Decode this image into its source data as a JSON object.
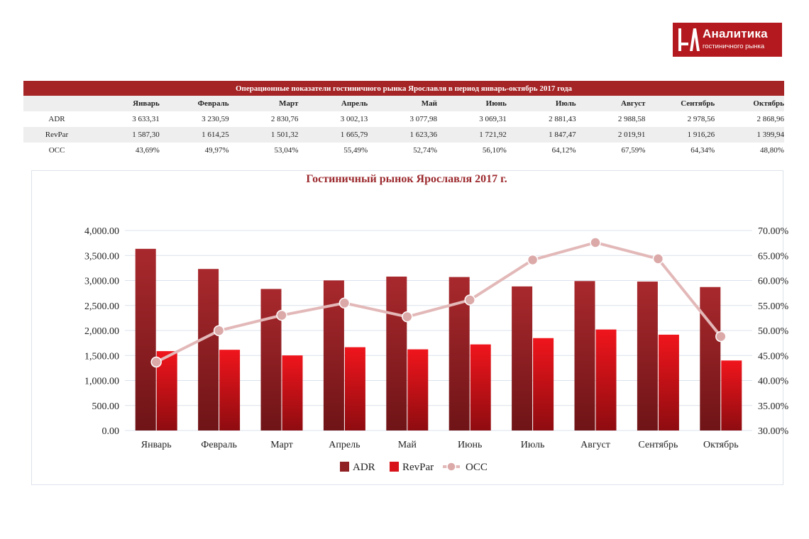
{
  "logo": {
    "title": "Аналитика",
    "subtitle": "гостиничного рынка",
    "bg_color": "#b3191e"
  },
  "table": {
    "title": "Операционные показатели гостиничного рынка Ярославля в период январь-октябрь 2017 года",
    "header": [
      "Январь",
      "Февраль",
      "Март",
      "Апрель",
      "Май",
      "Июнь",
      "Июль",
      "Август",
      "Сентябрь",
      "Октябрь"
    ],
    "rows": [
      {
        "label": "ADR",
        "values": [
          "3 633,31",
          "3 230,59",
          "2 830,76",
          "3 002,13",
          "3 077,98",
          "3 069,31",
          "2 881,43",
          "2 988,58",
          "2 978,56",
          "2 868,96"
        ]
      },
      {
        "label": "RevPar",
        "values": [
          "1 587,30",
          "1 614,25",
          "1 501,32",
          "1 665,79",
          "1 623,36",
          "1 721,92",
          "1 847,47",
          "2 019,91",
          "1 916,26",
          "1 399,94"
        ]
      },
      {
        "label": "OCC",
        "values": [
          "43,69%",
          "49,97%",
          "53,04%",
          "55,49%",
          "52,74%",
          "56,10%",
          "64,12%",
          "67,59%",
          "64,34%",
          "48,80%"
        ]
      }
    ]
  },
  "chart_data": {
    "type": "bar",
    "title": "Гостиничный рынок Ярославля 2017 г.",
    "categories": [
      "Январь",
      "Февраль",
      "Март",
      "Апрель",
      "Май",
      "Июнь",
      "Июль",
      "Август",
      "Сентябрь",
      "Октябрь"
    ],
    "series": [
      {
        "name": "ADR",
        "type": "bar",
        "axis": "left",
        "color": "#a4282c",
        "values": [
          3633.31,
          3230.59,
          2830.76,
          3002.13,
          3077.98,
          3069.31,
          2881.43,
          2988.58,
          2978.56,
          2868.96
        ]
      },
      {
        "name": "RevPar",
        "type": "bar",
        "axis": "left",
        "color": "#e0141b",
        "values": [
          1587.3,
          1614.25,
          1501.32,
          1665.79,
          1623.36,
          1721.92,
          1847.47,
          2019.91,
          1916.26,
          1399.94
        ]
      },
      {
        "name": "OCC",
        "type": "line",
        "axis": "right",
        "color": "#e3b8b8",
        "values": [
          43.69,
          49.97,
          53.04,
          55.49,
          52.74,
          56.1,
          64.12,
          67.59,
          64.34,
          48.8
        ]
      }
    ],
    "y_left": {
      "min": 0,
      "max": 4000,
      "step": 500,
      "ticks": [
        "0.00",
        "500.00",
        "1,000.00",
        "1,500.00",
        "2,000.00",
        "2,500.00",
        "3,000.00",
        "3,500.00",
        "4,000.00"
      ]
    },
    "y_right": {
      "min": 30,
      "max": 70,
      "step": 5,
      "ticks": [
        "30.00%",
        "35.00%",
        "40.00%",
        "45.00%",
        "50.00%",
        "55.00%",
        "60.00%",
        "65.00%",
        "70.00%"
      ]
    },
    "grid": true,
    "legend_position": "bottom"
  }
}
